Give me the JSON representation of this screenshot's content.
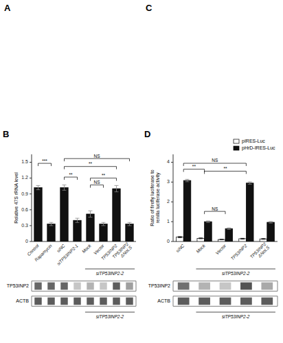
{
  "chart_data": [
    {
      "type": "empty",
      "title": "A"
    },
    {
      "type": "empty",
      "title": "C"
    },
    {
      "type": "bar",
      "title": "B",
      "categories": [
        "Control",
        "Rapamycin",
        "siNC",
        "siTP53INP2-1",
        "Mock",
        "Vector",
        "TP53INP2",
        "TP53INP2\nΔNoLS"
      ],
      "values": [
        1.02,
        0.33,
        1.02,
        0.4,
        0.52,
        0.33,
        1.0,
        0.33
      ],
      "errors": [
        0.04,
        0.03,
        0.05,
        0.04,
        0.06,
        0.03,
        0.06,
        0.03
      ],
      "color": "#111111",
      "ylabel": "Relative 47S rRNA level",
      "ylim": [
        0,
        1.65
      ],
      "yticks": [
        0,
        0.3,
        0.6,
        0.9,
        1.2,
        1.5
      ],
      "grid": false,
      "annotations": [
        {
          "x1": 0,
          "x2": 1,
          "y": 1.48,
          "label": "***"
        },
        {
          "x1": 2,
          "x2": 7,
          "y": 1.57,
          "label": "NS"
        },
        {
          "x1": 2,
          "x2": 6,
          "y": 1.42,
          "label": "**"
        },
        {
          "x1": 2,
          "x2": 3,
          "y": 1.22,
          "label": "**"
        },
        {
          "x1": 4,
          "x2": 6,
          "y": 1.2,
          "label": "**"
        },
        {
          "x1": 4,
          "x2": 5,
          "y": 1.07,
          "label": "NS"
        }
      ],
      "groups": [
        {
          "label": "siTP53INP2-2",
          "start": 4,
          "end": 7
        }
      ],
      "blots": [
        {
          "label": "TP53INP2",
          "values": [
            0.8,
            0.8,
            0.8,
            0.3,
            0.4,
            0.3,
            0.85,
            0.5
          ]
        },
        {
          "label": "ACTB",
          "values": [
            0.85,
            0.85,
            0.85,
            0.85,
            0.85,
            0.85,
            0.85,
            0.85
          ]
        }
      ]
    },
    {
      "type": "bar",
      "title": "D",
      "categories": [
        "siNC",
        "Mock",
        "Vector",
        "TP53INP2",
        "TP53INP2\nΔNoLS"
      ],
      "series": [
        {
          "name": "pIRES-Luc",
          "color": "#ffffff",
          "values": [
            0.22,
            0.16,
            0.1,
            0.14,
            0.13
          ],
          "errors": [
            0.03,
            0.02,
            0.01,
            0.02,
            0.02
          ]
        },
        {
          "name": "pHrD-IRES-Luc",
          "color": "#111111",
          "values": [
            3.08,
            1.0,
            0.65,
            2.95,
            0.97
          ],
          "errors": [
            0.06,
            0.04,
            0.04,
            0.06,
            0.04
          ]
        }
      ],
      "ylabel": "Ratio of firefly luciferase to\nrenilla luciferase activity",
      "ylim": [
        0,
        4.4
      ],
      "yticks": [
        0,
        1,
        2,
        3,
        4
      ],
      "legend": "upper right",
      "grid": false,
      "annotations": [
        {
          "x1": 0,
          "x2": 1,
          "y": 3.65,
          "label": "**"
        },
        {
          "x1": 1,
          "x2": 2,
          "y": 1.52,
          "label": "NS"
        },
        {
          "x1": 0,
          "x2": 3,
          "y": 3.95,
          "label": "NS"
        },
        {
          "x1": 1,
          "x2": 3,
          "y": 3.55,
          "label": "**"
        }
      ],
      "groups": [
        {
          "label": "siTP53INP2-2",
          "start": 1,
          "end": 4
        }
      ],
      "blots": [
        {
          "label": "TP53INP2",
          "values": [
            0.75,
            0.4,
            0.3,
            0.9,
            0.45
          ]
        },
        {
          "label": "ACTB",
          "values": [
            0.85,
            0.85,
            0.85,
            0.85,
            0.85
          ]
        }
      ]
    }
  ]
}
